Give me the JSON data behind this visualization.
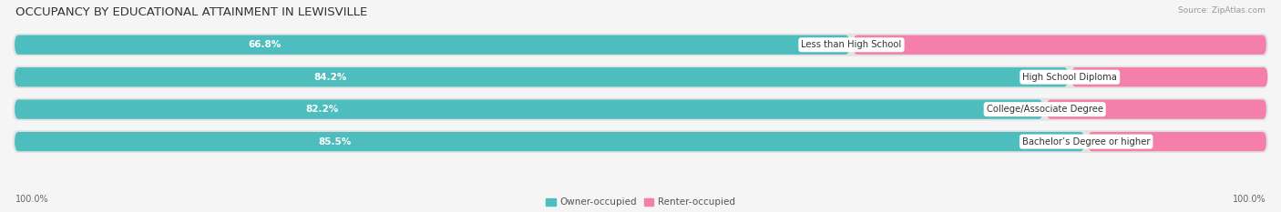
{
  "title": "OCCUPANCY BY EDUCATIONAL ATTAINMENT IN LEWISVILLE",
  "source": "Source: ZipAtlas.com",
  "categories": [
    "Less than High School",
    "High School Diploma",
    "College/Associate Degree",
    "Bachelor’s Degree or higher"
  ],
  "owner_values": [
    66.8,
    84.2,
    82.2,
    85.5
  ],
  "renter_values": [
    33.2,
    15.9,
    17.8,
    14.5
  ],
  "owner_color": "#4dbdbd",
  "renter_color": "#f47fab",
  "bar_bg_color": "#e2e2e2",
  "background_color": "#f5f5f5",
  "title_fontsize": 9.5,
  "bar_label_fontsize": 7.5,
  "cat_label_fontsize": 7.2,
  "axis_label_fontsize": 7,
  "legend_fontsize": 7.5,
  "x_left_label": "100.0%",
  "x_right_label": "100.0%"
}
